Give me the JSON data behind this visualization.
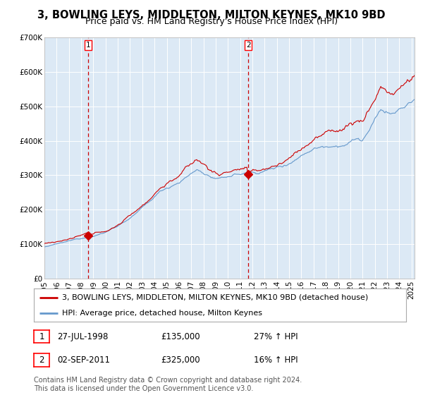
{
  "title": "3, BOWLING LEYS, MIDDLETON, MILTON KEYNES, MK10 9BD",
  "subtitle": "Price paid vs. HM Land Registry's House Price Index (HPI)",
  "ylim": [
    0,
    700000
  ],
  "yticks": [
    0,
    100000,
    200000,
    300000,
    400000,
    500000,
    600000,
    700000
  ],
  "ytick_labels": [
    "£0",
    "£100K",
    "£200K",
    "£300K",
    "£400K",
    "£500K",
    "£600K",
    "£700K"
  ],
  "xmin": 1995.0,
  "xmax": 2025.25,
  "background_color": "#ffffff",
  "plot_bg_color": "#dce9f5",
  "grid_color": "#cccccc",
  "red_line_color": "#cc0000",
  "blue_line_color": "#6699cc",
  "marker1_date_num": 1998.57,
  "marker1_value": 135000,
  "marker2_date_num": 2011.67,
  "marker2_value": 325000,
  "vline_color": "#cc0000",
  "legend_red_label": "3, BOWLING LEYS, MIDDLETON, MILTON KEYNES, MK10 9BD (detached house)",
  "legend_blue_label": "HPI: Average price, detached house, Milton Keynes",
  "sale1_label": "1",
  "sale1_date": "27-JUL-1998",
  "sale1_price": "£135,000",
  "sale1_hpi": "27% ↑ HPI",
  "sale2_label": "2",
  "sale2_date": "02-SEP-2011",
  "sale2_price": "£325,000",
  "sale2_hpi": "16% ↑ HPI",
  "footer": "Contains HM Land Registry data © Crown copyright and database right 2024.\nThis data is licensed under the Open Government Licence v3.0.",
  "title_fontsize": 10.5,
  "subtitle_fontsize": 9,
  "axis_fontsize": 7.5,
  "legend_fontsize": 8,
  "table_fontsize": 8.5,
  "footer_fontsize": 7
}
